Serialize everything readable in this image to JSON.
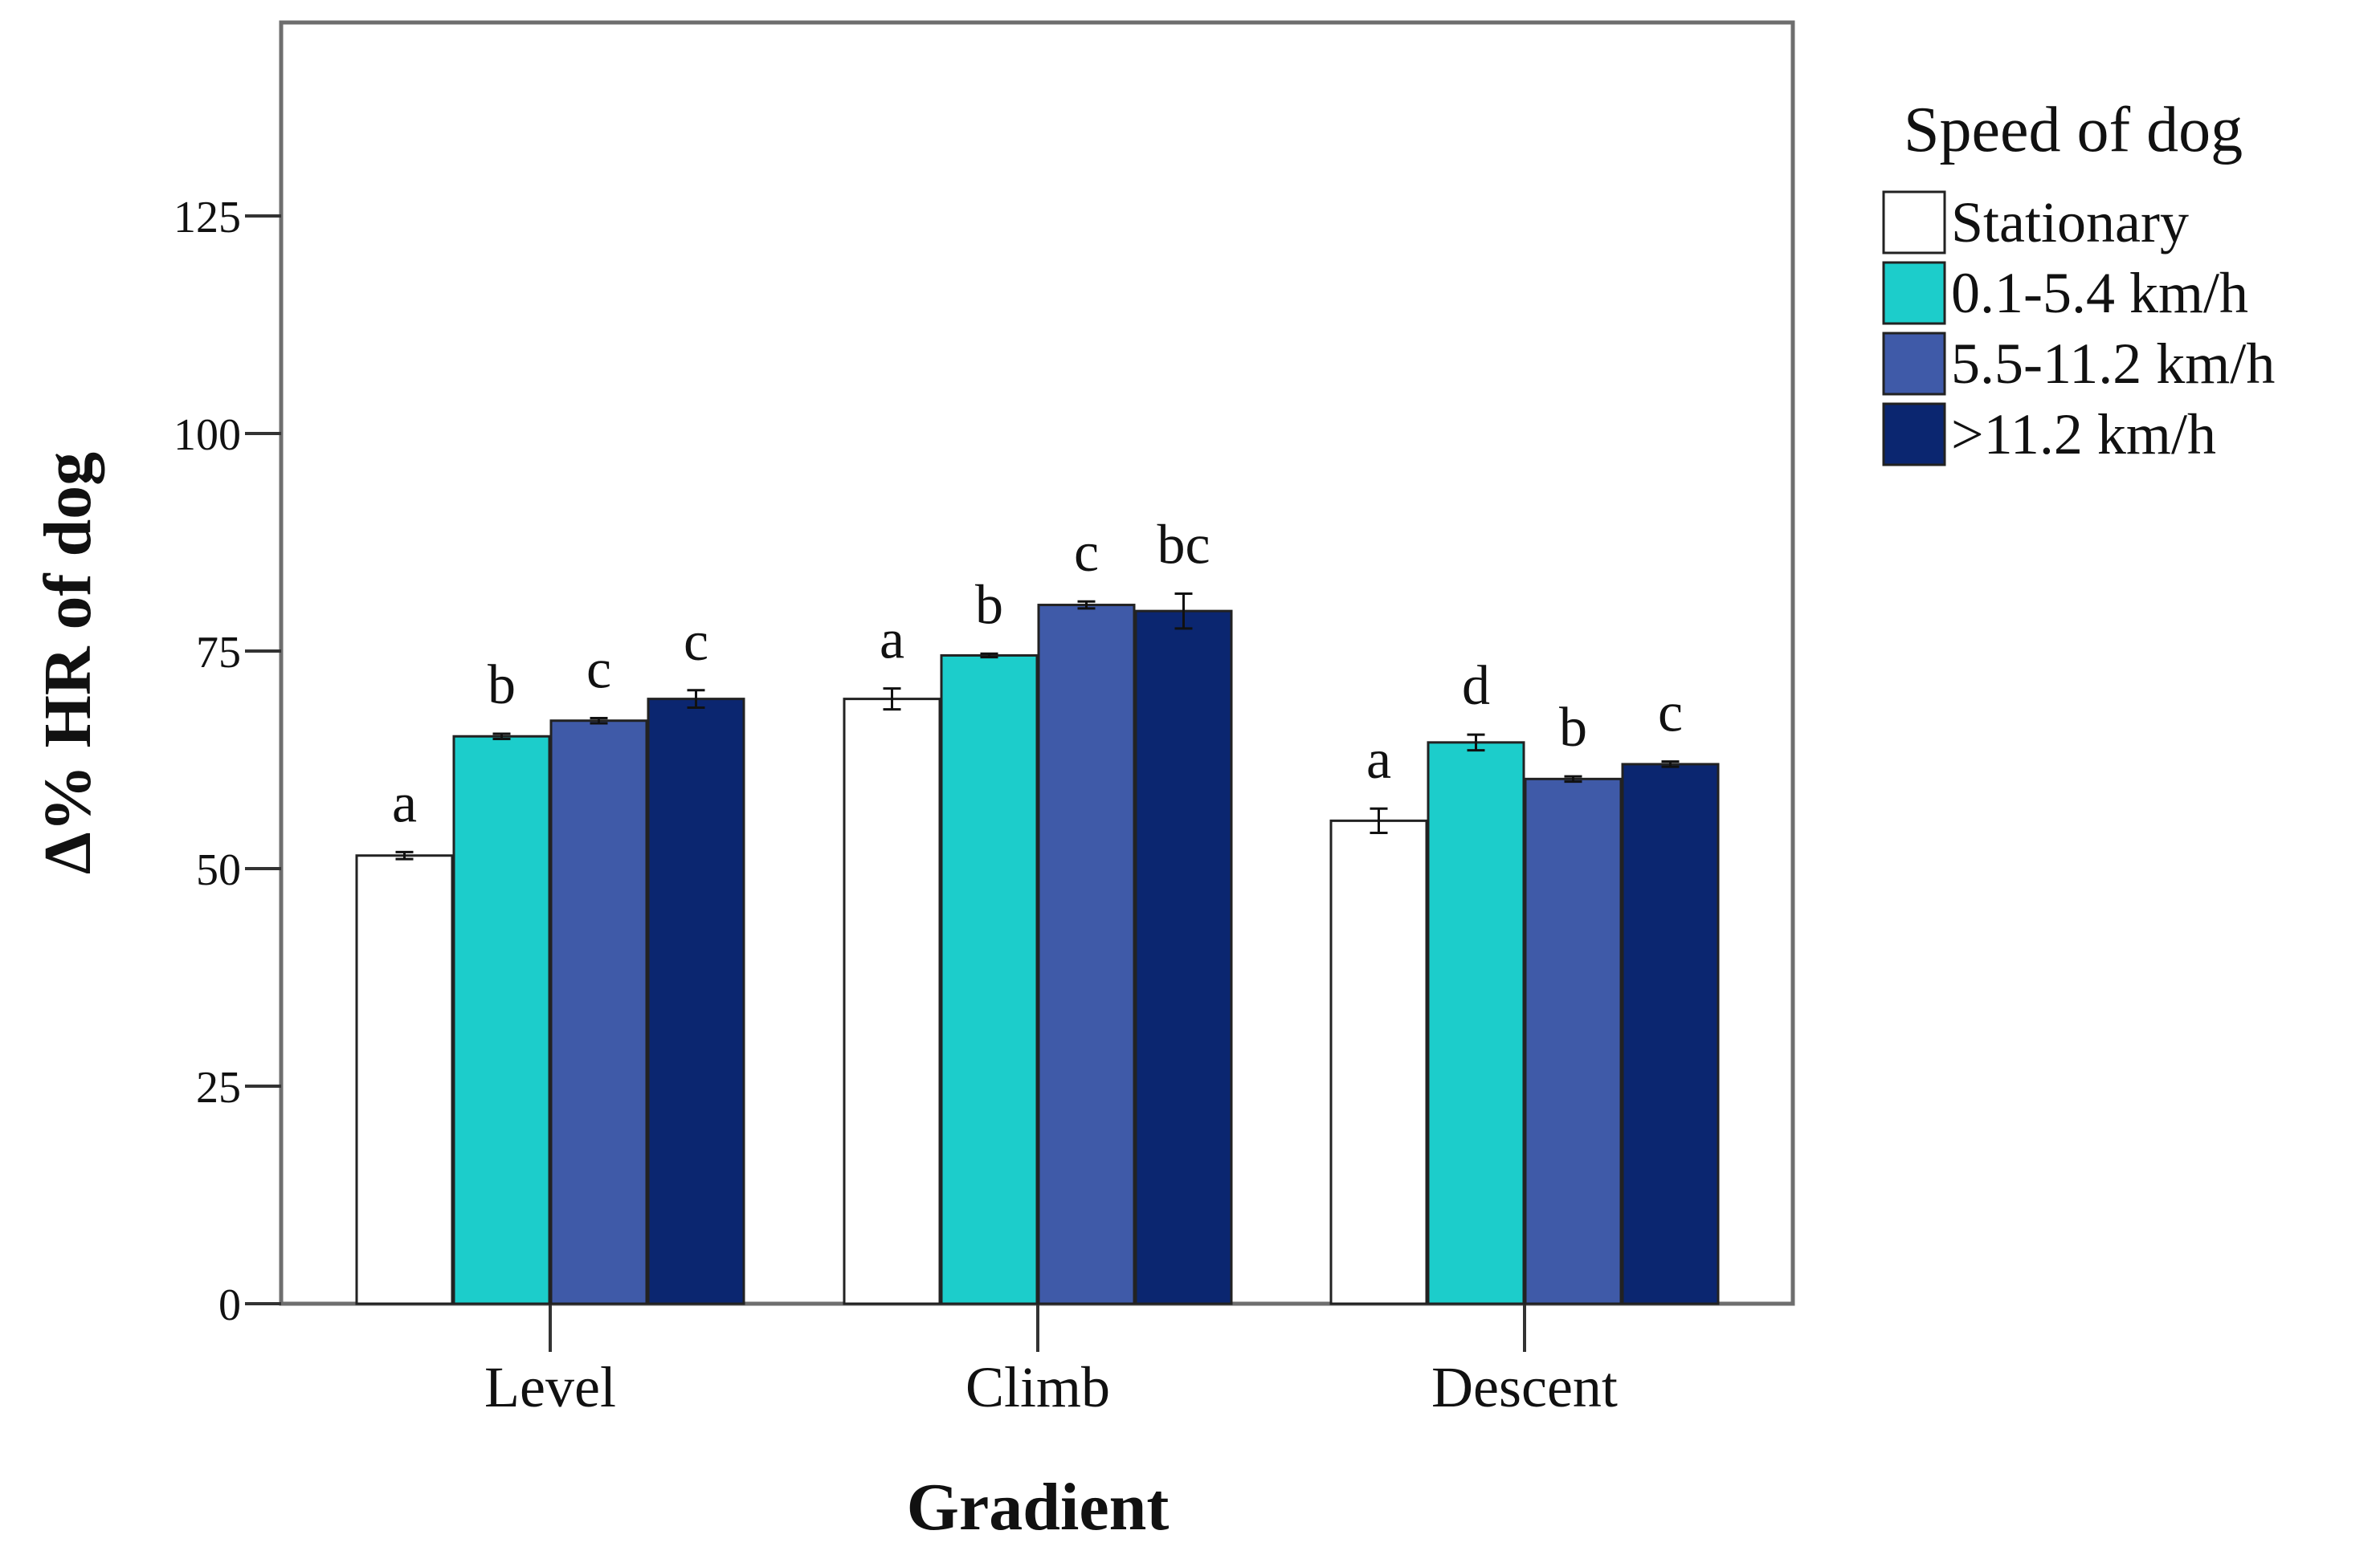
{
  "chart_data": {
    "type": "bar",
    "title": "",
    "xlabel": "Gradient",
    "ylabel": "Δ% HR of dog",
    "ylim": [
      0,
      147
    ],
    "yticks": [
      "0",
      "25",
      "50",
      "75",
      "100",
      "125"
    ],
    "categories": [
      "Level",
      "Climb",
      "Descent"
    ],
    "legend_title": "Speed of dog",
    "legend_position": "top-right",
    "series": [
      {
        "name": "Stationary",
        "color": "#ffffff",
        "values": [
          51.5,
          69.5,
          55.5
        ],
        "errors": [
          0.4,
          1.2,
          1.4
        ],
        "letters": [
          "a",
          "a",
          "a"
        ]
      },
      {
        "name": "0.1-5.4 km/h",
        "color": "#1ccdcb",
        "values": [
          65.2,
          74.5,
          64.5
        ],
        "errors": [
          0.3,
          0.2,
          0.9
        ],
        "letters": [
          "b",
          "b",
          "d"
        ]
      },
      {
        "name": "5.5-11.2 km/h",
        "color": "#3f5aa8",
        "values": [
          67.0,
          80.3,
          60.3
        ],
        "errors": [
          0.3,
          0.4,
          0.3
        ],
        "letters": [
          "c",
          "c",
          "b"
        ]
      },
      {
        "name": ">11.2 km/h",
        "color": "#0b2670",
        "values": [
          69.5,
          79.6,
          62.0
        ],
        "errors": [
          1.0,
          2.0,
          0.3
        ],
        "letters": [
          "c",
          "bc",
          "c"
        ]
      }
    ]
  }
}
